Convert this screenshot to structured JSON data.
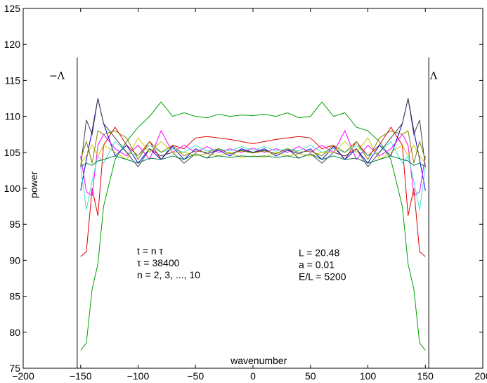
{
  "chart_data": {
    "type": "line",
    "title": "",
    "xlabel": "wavenumber",
    "ylabel": "power",
    "xlim": [
      -200,
      200
    ],
    "ylim": [
      75,
      125
    ],
    "xticks": [
      -200,
      -150,
      -100,
      -50,
      0,
      50,
      100,
      150,
      200
    ],
    "xtick_labels": [
      "−200",
      "−150",
      "−100",
      "−50",
      "0",
      "50",
      "100",
      "150",
      "200"
    ],
    "yticks": [
      75,
      80,
      85,
      90,
      95,
      100,
      105,
      110,
      115,
      120,
      125
    ],
    "ytick_labels": [
      "75",
      "80",
      "85",
      "90",
      "95",
      "100",
      "105",
      "110",
      "115",
      "120",
      "125"
    ],
    "grid": false,
    "legend": "none",
    "cutoff_lines": {
      "x": [
        -153,
        153
      ],
      "y_top": 118.2,
      "left_label": "−Λ",
      "right_label": "Λ"
    },
    "annotations": {
      "left": [
        "t = n τ",
        "τ = 38400",
        "n = 2, 3, ..., 10"
      ],
      "right": [
        "L = 20.48",
        "a = 0.01",
        "E/L = 5200"
      ]
    },
    "series": [
      {
        "color": "#00a000",
        "x": [
          -150,
          -145,
          -140,
          -135,
          -130,
          -120,
          -110,
          -100,
          -90,
          -80,
          -70,
          -60,
          -50,
          -40,
          -30,
          -20,
          -10,
          0,
          10,
          20,
          30,
          40,
          50,
          60,
          70,
          80,
          90,
          100,
          110,
          120,
          130,
          135,
          140,
          145,
          150
        ],
        "y": [
          77.5,
          78.5,
          86,
          89.5,
          97.5,
          104,
          106.5,
          108.5,
          110,
          112,
          110,
          110.5,
          110,
          109.8,
          110.3,
          110,
          110.2,
          110.1,
          110.3,
          110,
          110.5,
          109.8,
          110,
          112,
          110,
          110.5,
          108.5,
          108,
          106.5,
          104,
          97.5,
          89.5,
          86,
          78.5,
          77.5
        ]
      },
      {
        "color": "#e00000",
        "x": [
          -150,
          -145,
          -140,
          -135,
          -130,
          -120,
          -110,
          -100,
          -90,
          -80,
          -70,
          -60,
          -50,
          -40,
          -30,
          -20,
          -10,
          0,
          10,
          20,
          30,
          40,
          50,
          60,
          70,
          80,
          90,
          100,
          110,
          120,
          130,
          135,
          140,
          145,
          150
        ],
        "y": [
          90.5,
          91.2,
          100,
          96.2,
          106,
          108.5,
          106,
          104.5,
          106.5,
          104,
          106,
          105.5,
          107,
          107.2,
          107,
          106.8,
          106.5,
          106.2,
          106.5,
          106.8,
          107,
          107.2,
          107,
          105.5,
          106,
          104,
          106.5,
          104.5,
          106,
          108.5,
          106,
          96.2,
          100,
          91.2,
          90.5
        ]
      },
      {
        "color": "#0000e0",
        "x": [
          -150,
          -145,
          -140,
          -135,
          -130,
          -120,
          -110,
          -100,
          -90,
          -80,
          -70,
          -60,
          -50,
          -40,
          -30,
          -20,
          -10,
          0,
          10,
          20,
          30,
          40,
          50,
          60,
          70,
          80,
          90,
          100,
          110,
          120,
          130,
          135,
          140,
          145,
          150
        ],
        "y": [
          99.7,
          104,
          108,
          112.5,
          109,
          104.5,
          106,
          103.5,
          105.5,
          104,
          105.8,
          104,
          105.5,
          104.8,
          105.3,
          104.5,
          105.5,
          105,
          105.5,
          104.5,
          105.3,
          104.8,
          105.5,
          104,
          105.8,
          104,
          105.5,
          103.5,
          106,
          104.5,
          109,
          112.5,
          108,
          104,
          99.7
        ]
      },
      {
        "color": "#ff00ff",
        "x": [
          -150,
          -145,
          -140,
          -135,
          -130,
          -120,
          -110,
          -100,
          -90,
          -80,
          -70,
          -60,
          -50,
          -40,
          -30,
          -20,
          -10,
          0,
          10,
          20,
          30,
          40,
          50,
          60,
          70,
          80,
          90,
          100,
          110,
          120,
          130,
          135,
          140,
          145,
          150
        ],
        "y": [
          104.5,
          99.5,
          99,
          106,
          107.5,
          105.5,
          104.5,
          106,
          104,
          108,
          105,
          106,
          105,
          105.8,
          105,
          105.5,
          105,
          105.6,
          105,
          105.5,
          105,
          105.8,
          105,
          106,
          105,
          108,
          104,
          106,
          104.5,
          105.5,
          107.5,
          106,
          99,
          99.5,
          104.5
        ]
      },
      {
        "color": "#40e0d0",
        "x": [
          -150,
          -145,
          -140,
          -135,
          -130,
          -120,
          -110,
          -100,
          -90,
          -80,
          -70,
          -60,
          -50,
          -40,
          -30,
          -20,
          -10,
          0,
          10,
          20,
          30,
          40,
          50,
          60,
          70,
          80,
          90,
          100,
          110,
          120,
          130,
          135,
          140,
          145,
          150
        ],
        "y": [
          103,
          97,
          101,
          104.5,
          103.5,
          106.5,
          105,
          104.5,
          106,
          105,
          105.5,
          105,
          106,
          105.2,
          105.5,
          105.2,
          105.8,
          105.3,
          105.8,
          105.2,
          105.5,
          105.2,
          106,
          105,
          105.5,
          105,
          106,
          104.5,
          105,
          106.5,
          103.5,
          104.5,
          101,
          97,
          103
        ]
      },
      {
        "color": "#404040",
        "x": [
          -150,
          -145,
          -140,
          -135,
          -130,
          -120,
          -110,
          -100,
          -90,
          -80,
          -70,
          -60,
          -50,
          -40,
          -30,
          -20,
          -10,
          0,
          10,
          20,
          30,
          40,
          50,
          60,
          70,
          80,
          90,
          100,
          110,
          120,
          130,
          135,
          140,
          145,
          150
        ],
        "y": [
          103,
          109.5,
          107.5,
          112.5,
          109,
          107,
          105,
          103,
          105.5,
          104.5,
          105,
          103.5,
          104.8,
          104.2,
          105.5,
          104.8,
          105.3,
          105,
          105.3,
          104.8,
          105.5,
          104.2,
          104.8,
          103.5,
          105,
          104.5,
          105.5,
          103,
          105,
          107,
          109,
          112.5,
          107.5,
          109.5,
          103
        ]
      },
      {
        "color": "#c8c800",
        "x": [
          -150,
          -145,
          -140,
          -135,
          -130,
          -120,
          -110,
          -100,
          -90,
          -80,
          -70,
          -60,
          -50,
          -40,
          -30,
          -20,
          -10,
          0,
          10,
          20,
          30,
          40,
          50,
          60,
          70,
          80,
          90,
          100,
          110,
          120,
          130,
          135,
          140,
          145,
          150
        ],
        "y": [
          103.5,
          104.5,
          106,
          104.5,
          106,
          105,
          104,
          107,
          105,
          106.5,
          105,
          105,
          104.5,
          104.8,
          104.5,
          105,
          104.3,
          104.5,
          104.3,
          105,
          104.5,
          104.8,
          104.5,
          105,
          105,
          106.5,
          105,
          107,
          104,
          105,
          106,
          104.5,
          106,
          104.5,
          103.5
        ]
      },
      {
        "color": "#808000",
        "x": [
          -150,
          -145,
          -140,
          -135,
          -130,
          -120,
          -110,
          -100,
          -90,
          -80,
          -70,
          -60,
          -50,
          -40,
          -30,
          -20,
          -10,
          0,
          10,
          20,
          30,
          40,
          50,
          60,
          70,
          80,
          90,
          100,
          110,
          120,
          130,
          135,
          140,
          145,
          150
        ],
        "y": [
          104,
          106.5,
          103.5,
          108,
          107.5,
          108,
          107,
          104,
          106.5,
          105,
          106,
          104.5,
          105.2,
          105,
          105.5,
          104.8,
          105.2,
          104.9,
          105.2,
          104.8,
          105.5,
          105,
          105.2,
          104.5,
          106,
          105,
          106.5,
          104,
          107,
          108,
          107.5,
          108,
          103.5,
          106.5,
          104
        ]
      },
      {
        "color": "#008040",
        "x": [
          -150,
          -145,
          -140,
          -135,
          -130,
          -120,
          -110,
          -100,
          -90,
          -80,
          -70,
          -60,
          -50,
          -40,
          -30,
          -20,
          -10,
          0,
          10,
          20,
          30,
          40,
          50,
          60,
          70,
          80,
          90,
          100,
          110,
          120,
          130,
          135,
          140,
          145,
          150
        ],
        "y": [
          103,
          103.5,
          103.2,
          103.8,
          104,
          104.5,
          104,
          103.5,
          104.2,
          104,
          104.5,
          104,
          104.8,
          104.2,
          104.5,
          104.3,
          104.5,
          104.4,
          104.5,
          104.3,
          104.5,
          104.2,
          104.8,
          104,
          104.5,
          104,
          104.2,
          103.5,
          104,
          104.5,
          104,
          103.8,
          103.2,
          103.5,
          103
        ]
      }
    ]
  }
}
